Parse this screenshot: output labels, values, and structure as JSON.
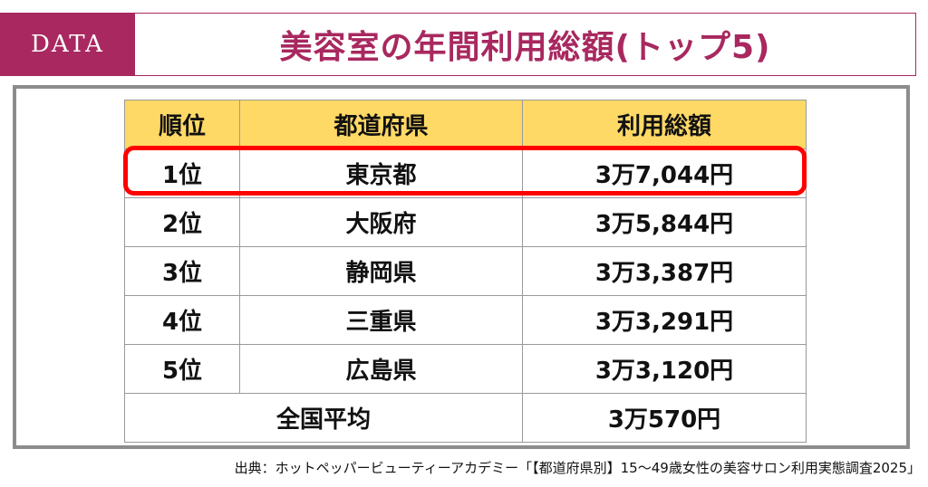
{
  "header": {
    "badge": "DATA",
    "title": "美容室の年間利用総額(トップ5)"
  },
  "table": {
    "headers": {
      "rank": "順位",
      "prefecture": "都道府県",
      "amount": "利用総額"
    },
    "rows": [
      {
        "rank": "1位",
        "prefecture": "東京都",
        "amount": "3万7,044円"
      },
      {
        "rank": "2位",
        "prefecture": "大阪府",
        "amount": "3万5,844円"
      },
      {
        "rank": "3位",
        "prefecture": "静岡県",
        "amount": "3万3,387円"
      },
      {
        "rank": "4位",
        "prefecture": "三重県",
        "amount": "3万3,291円"
      },
      {
        "rank": "5位",
        "prefecture": "広島県",
        "amount": "3万3,120円"
      }
    ],
    "average": {
      "label": "全国平均",
      "amount": "3万570円"
    }
  },
  "source": "出典：ホットペッパービューティーアカデミー「【都道府県別】15〜49歳女性の美容サロン利用実態調査2025」",
  "colors": {
    "accent": "#a8285f",
    "header_fill": "#ffd966",
    "highlight": "#ff0000",
    "frame": "#8c8c8c"
  }
}
